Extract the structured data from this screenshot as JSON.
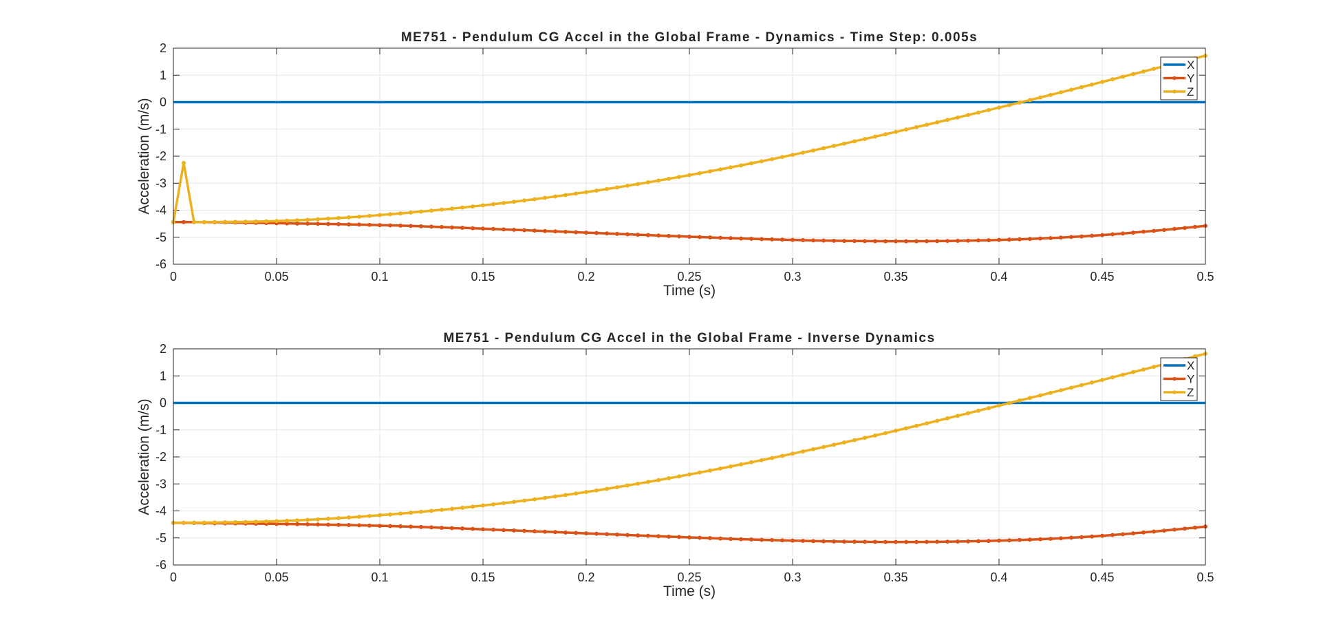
{
  "chart_data": [
    {
      "type": "line",
      "title": "ME751 - Pendulum CG Accel in the Global Frame - Dynamics - Time Step: 0.005s",
      "xlabel": "Time (s)",
      "ylabel": "Acceleration (m/s)",
      "xlim": [
        0,
        0.5
      ],
      "ylim": [
        -6,
        2
      ],
      "xticks": [
        0,
        0.05,
        0.1,
        0.15,
        0.2,
        0.25,
        0.3,
        0.35,
        0.4,
        0.45,
        0.5
      ],
      "xtick_labels": [
        "0",
        "0.05",
        "0.1",
        "0.15",
        "0.2",
        "0.25",
        "0.3",
        "0.35",
        "0.4",
        "0.45",
        "0.5"
      ],
      "yticks": [
        -6,
        -5,
        -4,
        -3,
        -2,
        -1,
        0,
        1,
        2
      ],
      "ytick_labels": [
        "-6",
        "-5",
        "-4",
        "-3",
        "-2",
        "-1",
        "0",
        "1",
        "2"
      ],
      "grid": true,
      "legend_position": "top-right",
      "series": [
        {
          "name": "X",
          "color": "#0072BD",
          "markers": false,
          "x": [
            0,
            0.5
          ],
          "y": [
            0,
            0
          ]
        },
        {
          "name": "Y",
          "color": "#D95319",
          "markers": true,
          "x": [
            0,
            0.01,
            0.05,
            0.1,
            0.15,
            0.2,
            0.25,
            0.3,
            0.35,
            0.4,
            0.45,
            0.5
          ],
          "y": [
            -4.44,
            -4.44,
            -4.48,
            -4.55,
            -4.68,
            -4.83,
            -4.98,
            -5.1,
            -5.15,
            -5.1,
            -4.92,
            -4.58
          ]
        },
        {
          "name": "Z",
          "color": "#EDB120",
          "markers": true,
          "x": [
            0,
            0.005,
            0.01,
            0.05,
            0.1,
            0.15,
            0.2,
            0.25,
            0.3,
            0.35,
            0.4,
            0.45,
            0.5
          ],
          "y": [
            -4.44,
            -2.25,
            -4.44,
            -4.4,
            -4.18,
            -3.82,
            -3.33,
            -2.7,
            -1.95,
            -1.1,
            -0.2,
            0.75,
            1.72
          ]
        }
      ]
    },
    {
      "type": "line",
      "title": "ME751 - Pendulum CG Accel in the Global Frame - Inverse Dynamics",
      "xlabel": "Time (s)",
      "ylabel": "Acceleration (m/s)",
      "xlim": [
        0,
        0.5
      ],
      "ylim": [
        -6,
        2
      ],
      "xticks": [
        0,
        0.05,
        0.1,
        0.15,
        0.2,
        0.25,
        0.3,
        0.35,
        0.4,
        0.45,
        0.5
      ],
      "xtick_labels": [
        "0",
        "0.05",
        "0.1",
        "0.15",
        "0.2",
        "0.25",
        "0.3",
        "0.35",
        "0.4",
        "0.45",
        "0.5"
      ],
      "yticks": [
        -6,
        -5,
        -4,
        -3,
        -2,
        -1,
        0,
        1,
        2
      ],
      "ytick_labels": [
        "-6",
        "-5",
        "-4",
        "-3",
        "-2",
        "-1",
        "0",
        "1",
        "2"
      ],
      "grid": true,
      "legend_position": "top-right",
      "series": [
        {
          "name": "X",
          "color": "#0072BD",
          "markers": false,
          "x": [
            0,
            0.5
          ],
          "y": [
            0,
            0
          ]
        },
        {
          "name": "Y",
          "color": "#D95319",
          "markers": true,
          "x": [
            0,
            0.05,
            0.1,
            0.15,
            0.2,
            0.25,
            0.3,
            0.35,
            0.4,
            0.45,
            0.5
          ],
          "y": [
            -4.44,
            -4.48,
            -4.55,
            -4.68,
            -4.83,
            -4.98,
            -5.1,
            -5.15,
            -5.1,
            -4.92,
            -4.58
          ]
        },
        {
          "name": "Z",
          "color": "#EDB120",
          "markers": true,
          "x": [
            0,
            0.05,
            0.1,
            0.15,
            0.2,
            0.25,
            0.3,
            0.35,
            0.4,
            0.45,
            0.5
          ],
          "y": [
            -4.44,
            -4.38,
            -4.16,
            -3.8,
            -3.3,
            -2.65,
            -1.88,
            -1.03,
            -0.1,
            0.85,
            1.82
          ]
        }
      ]
    }
  ]
}
